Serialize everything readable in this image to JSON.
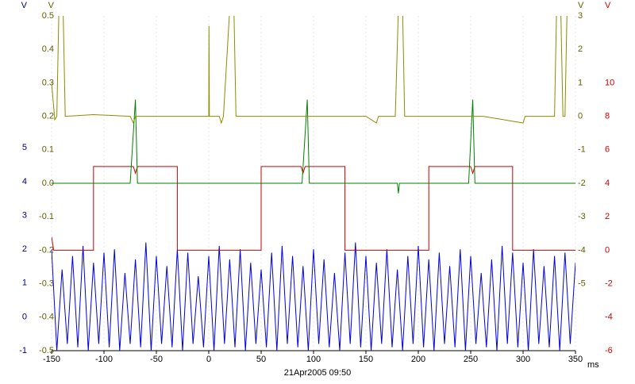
{
  "chart_data": {
    "type": "line",
    "xlim": [
      -150,
      350
    ],
    "xticks": [
      -150,
      -100,
      -50,
      0,
      50,
      100,
      150,
      200,
      250,
      300,
      350
    ],
    "x_unit": "ms",
    "footer": "21Apr2005  09:50",
    "grid": true,
    "y_axes": [
      {
        "side": "left",
        "unit": "V",
        "color": "#000080",
        "lim": [
          -1,
          8.9
        ],
        "ticks": [
          -1,
          0,
          1,
          2,
          3,
          4,
          5
        ]
      },
      {
        "side": "left",
        "unit": "V",
        "color": "#606000",
        "lim": [
          -0.5,
          0.5
        ],
        "ticks": [
          -0.5,
          -0.4,
          -0.3,
          -0.2,
          -0.1,
          {
            "value": 0,
            "label": "0.0"
          },
          0.1,
          0.2,
          0.3,
          0.4,
          0.5
        ]
      },
      {
        "side": "right",
        "unit": "V",
        "color": "#606000",
        "lim": [
          -7,
          3
        ],
        "ticks": [
          -5,
          -4,
          -3,
          -2,
          -1,
          0,
          1,
          2,
          3
        ]
      },
      {
        "side": "right",
        "unit": "V",
        "color": "#cc0000",
        "lim": [
          -6,
          14
        ],
        "ticks": [
          -6,
          -4,
          -2,
          0,
          2,
          4,
          6,
          8,
          10
        ]
      }
    ],
    "series": [
      {
        "color": "#0000dd",
        "axis": 0,
        "x": [
          -150,
          -145,
          -140,
          -135,
          -130,
          -125,
          -120,
          -115,
          -110,
          -105,
          -100,
          -95,
          -90,
          -85,
          -80,
          -75,
          -70,
          -65,
          -60,
          -55,
          -50,
          -45,
          -40,
          -35,
          -30,
          -25,
          -20,
          -15,
          -10,
          -5,
          0,
          5,
          10,
          15,
          20,
          25,
          30,
          35,
          40,
          45,
          50,
          55,
          60,
          65,
          70,
          75,
          80,
          85,
          90,
          95,
          100,
          105,
          110,
          115,
          120,
          125,
          130,
          135,
          140,
          145,
          150,
          155,
          160,
          165,
          170,
          175,
          180,
          185,
          190,
          195,
          200,
          205,
          210,
          215,
          220,
          225,
          230,
          235,
          240,
          245,
          250,
          255,
          260,
          265,
          270,
          275,
          280,
          285,
          290,
          295,
          300,
          305,
          310,
          315,
          320,
          325,
          330,
          335,
          340,
          345,
          350
        ],
        "values": [
          2.0,
          -1,
          1.4,
          -0.8,
          1.8,
          -0.9,
          2.1,
          -1,
          1.6,
          -0.8,
          1.9,
          -0.9,
          2.0,
          -1,
          1.3,
          -0.8,
          1.7,
          -0.9,
          2.2,
          -1,
          1.8,
          -0.8,
          1.5,
          -0.9,
          2.0,
          -1,
          1.9,
          -0.8,
          1.2,
          -0.9,
          1.8,
          -1,
          2.1,
          -0.8,
          1.7,
          -0.9,
          2.0,
          -1,
          1.6,
          -0.8,
          1.4,
          -0.9,
          1.9,
          -1,
          2.1,
          -0.8,
          1.8,
          -0.9,
          1.5,
          -1,
          2.0,
          -0.8,
          1.7,
          -0.9,
          1.3,
          -1,
          1.9,
          -0.8,
          2.2,
          -0.9,
          1.8,
          -1,
          1.6,
          -0.8,
          2.0,
          -0.9,
          1.4,
          -1,
          1.8,
          -0.8,
          2.1,
          -0.9,
          1.7,
          -1,
          1.9,
          -0.8,
          1.5,
          -0.9,
          2.0,
          -1,
          1.8,
          -0.8,
          1.3,
          -0.9,
          1.7,
          -1,
          2.1,
          -0.8,
          1.9,
          -0.9,
          1.6,
          -1,
          2.0,
          -0.8,
          1.5,
          -0.9,
          1.8,
          -1,
          1.9,
          -0.8,
          1.6
        ]
      },
      {
        "color": "#cc0000",
        "axis": 3,
        "x": [
          -150,
          -148,
          -110,
          -110,
          -72,
          -70,
          -68,
          -30,
          -30,
          50,
          50,
          88,
          90,
          92,
          130,
          130,
          210,
          210,
          250,
          252,
          254,
          290,
          290,
          350
        ],
        "values": [
          0.8,
          0,
          0,
          5,
          5,
          4.6,
          5,
          5,
          0,
          0,
          5,
          5,
          4.6,
          5,
          5,
          0,
          0,
          5,
          5,
          4.6,
          5,
          5,
          0,
          0
        ]
      },
      {
        "color": "#008000",
        "axis": 1,
        "x": [
          -150,
          -75,
          -70,
          -68,
          89,
          94,
          96,
          180,
          181,
          182,
          248,
          252,
          254,
          350
        ],
        "values": [
          0,
          0,
          0.25,
          0,
          0,
          0.25,
          0,
          0,
          -0.03,
          0,
          0,
          0.25,
          0,
          0
        ]
      },
      {
        "color": "#8c8c00",
        "axis": 2,
        "x": [
          -150,
          -147,
          -145,
          -143,
          -139,
          -137,
          -110,
          -75,
          -72,
          -70,
          0,
          0.2,
          0.6,
          10,
          12,
          14,
          20,
          24,
          26,
          85,
          150,
          160,
          162,
          178,
          181,
          185,
          187,
          262,
          300,
          302,
          330,
          332,
          336,
          338,
          340,
          342,
          350
        ],
        "values": [
          1,
          -0.1,
          0,
          3.2,
          3.2,
          0,
          0.05,
          0,
          -0.2,
          0,
          0,
          2.7,
          0,
          0,
          -0.2,
          0,
          3.2,
          3.2,
          0,
          0,
          0,
          -0.2,
          0,
          0,
          3.2,
          3.2,
          0,
          0,
          -0.2,
          0,
          0,
          3.2,
          3.2,
          0,
          0,
          3.2,
          3.2
        ]
      }
    ]
  }
}
